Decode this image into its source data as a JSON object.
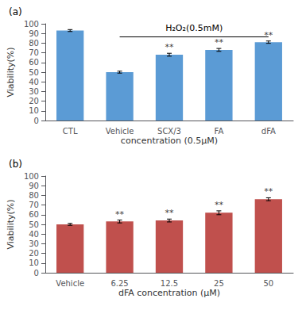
{
  "chart_data": [
    {
      "type": "bar",
      "title": "(a)",
      "categories": [
        "CTL",
        "Vehicle",
        "SCX/3",
        "FA",
        "dFA"
      ],
      "values": [
        93,
        50,
        68,
        73,
        81
      ],
      "errors": [
        1.0,
        1.0,
        1.5,
        1.5,
        1.2
      ],
      "color": "#5b9bd5",
      "ylabel": "Viability(%)",
      "xlabel": "concentration (0.5μM)",
      "ylim": [
        0,
        100
      ],
      "yticks": [
        0,
        10,
        20,
        30,
        40,
        50,
        60,
        70,
        80,
        90,
        100
      ],
      "grid": false,
      "annotations": [
        {
          "text": "**",
          "category": "SCX/3"
        },
        {
          "text": "**",
          "category": "FA"
        },
        {
          "text": "**",
          "category": "dFA"
        },
        {
          "text": "H₂O₂(0.5mM)",
          "from": "Vehicle",
          "to": "dFA",
          "y": 87
        }
      ]
    },
    {
      "type": "bar",
      "title": "(b)",
      "categories": [
        "Vehicle",
        "6.25",
        "12.5",
        "25",
        "50"
      ],
      "values": [
        50,
        53,
        54,
        62,
        76
      ],
      "errors": [
        1.0,
        1.5,
        1.5,
        2.0,
        1.5
      ],
      "color": "#c0504d",
      "ylabel": "Viability(%)",
      "xlabel": "dFA concentration (μM)",
      "ylim": [
        0,
        100
      ],
      "yticks": [
        0,
        10,
        20,
        30,
        40,
        50,
        60,
        70,
        80,
        90,
        100
      ],
      "grid": false,
      "annotations": [
        {
          "text": "**",
          "category": "6.25"
        },
        {
          "text": "**",
          "category": "12.5"
        },
        {
          "text": "**",
          "category": "25"
        },
        {
          "text": "**",
          "category": "50"
        }
      ]
    }
  ]
}
